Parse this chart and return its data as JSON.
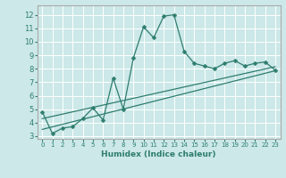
{
  "title": "",
  "xlabel": "Humidex (Indice chaleur)",
  "xlim": [
    -0.5,
    23.5
  ],
  "ylim": [
    2.8,
    12.7
  ],
  "xticks": [
    0,
    1,
    2,
    3,
    4,
    5,
    6,
    7,
    8,
    9,
    10,
    11,
    12,
    13,
    14,
    15,
    16,
    17,
    18,
    19,
    20,
    21,
    22,
    23
  ],
  "yticks": [
    3,
    4,
    5,
    6,
    7,
    8,
    9,
    10,
    11,
    12
  ],
  "background_color": "#cce8e8",
  "grid_color": "#ffffff",
  "line_color": "#2e7d6e",
  "main_x": [
    0,
    1,
    2,
    3,
    4,
    5,
    6,
    7,
    8,
    9,
    10,
    11,
    12,
    13,
    14,
    15,
    16,
    17,
    18,
    19,
    20,
    21,
    22,
    23
  ],
  "main_y": [
    4.8,
    3.2,
    3.6,
    3.7,
    4.3,
    5.1,
    4.2,
    7.3,
    5.0,
    8.8,
    11.1,
    10.3,
    11.9,
    12.0,
    9.3,
    8.4,
    8.2,
    8.0,
    8.4,
    8.6,
    8.2,
    8.4,
    8.5,
    7.9
  ],
  "trend_x": [
    0,
    23
  ],
  "trend_y": [
    3.5,
    7.85
  ],
  "trend2_x": [
    0,
    23
  ],
  "trend2_y": [
    4.3,
    8.15
  ],
  "spine_color": "#aaaaaa",
  "xlabel_fontsize": 6.5,
  "tick_fontsize_x": 5.0,
  "tick_fontsize_y": 6.0,
  "marker_size": 2.5,
  "linewidth": 0.9
}
